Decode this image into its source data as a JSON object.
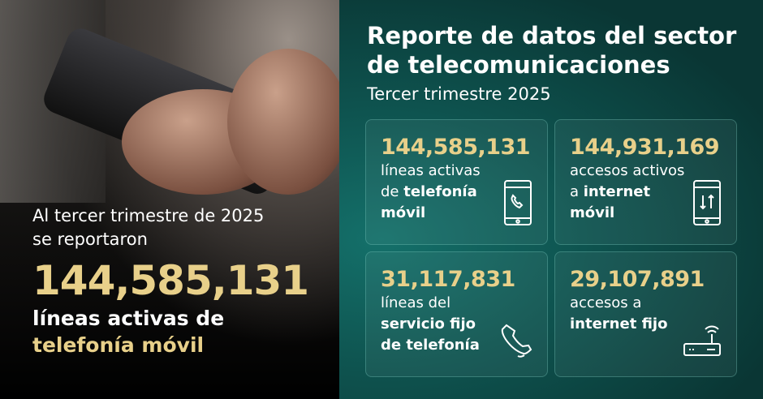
{
  "left": {
    "intro_line1": "Al tercer trimestre de 2025",
    "intro_line2": "se reportaron",
    "number": "144,585,131",
    "line1": "líneas activas de",
    "line2": "telefonía móvil"
  },
  "header": {
    "title_line1": "Reporte de datos del sector",
    "title_line2": "de telecomunicaciones",
    "subtitle": "Tercer trimestre 2025"
  },
  "cards": [
    {
      "number": "144,585,131",
      "l1": "líneas activas",
      "l2a": "de ",
      "l2b": "telefonía",
      "l3": "móvil",
      "icon": "smartphone-call-icon"
    },
    {
      "number": "144,931,169",
      "l1": "accesos activos",
      "l2a": "a ",
      "l2b": "internet",
      "l3": "móvil",
      "icon": "smartphone-data-icon"
    },
    {
      "number": "31,117,831",
      "l1": "líneas del",
      "l2a": "",
      "l2b": "servicio fijo",
      "l3": "de telefonía",
      "icon": "telephone-handset-icon"
    },
    {
      "number": "29,107,891",
      "l1": "accesos a",
      "l2a": "",
      "l2b": "internet fijo",
      "l3": "",
      "icon": "router-icon"
    }
  ],
  "colors": {
    "gold": "#e8d08a",
    "teal": "#0e524e"
  }
}
